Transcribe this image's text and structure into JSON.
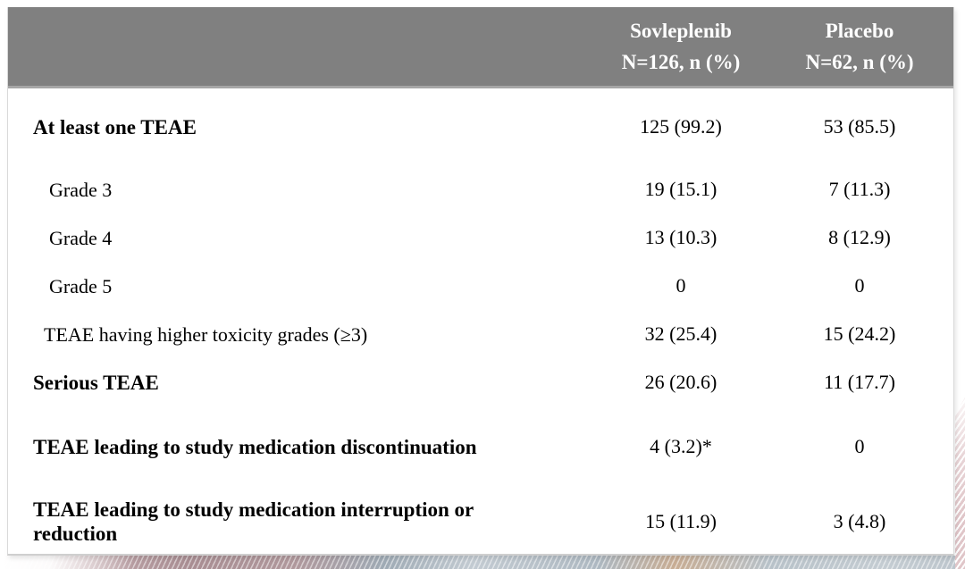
{
  "colors": {
    "header_bg": "#808080",
    "header_text": "#ffffff",
    "body_bg": "#ffffff",
    "body_text": "#000000",
    "decor_mauve": "#a98e93",
    "decor_gray_blue": "#adb8c1",
    "decor_tan": "#c8ad94",
    "decor_pink_stripe": "#e0c6c9"
  },
  "table": {
    "header": {
      "columns": [
        {
          "name": "Sovleplenib",
          "subtitle": "N=126, n (%)"
        },
        {
          "name": "Placebo",
          "subtitle": "N=62, n (%)"
        }
      ]
    },
    "rows": [
      {
        "label": "At least one TEAE",
        "sovleplenib": "125 (99.2)",
        "placebo": "53 (85.5)"
      },
      {
        "label": "Grade 3",
        "sovleplenib": "19 (15.1)",
        "placebo": "7 (11.3)"
      },
      {
        "label": "Grade 4",
        "sovleplenib": "13 (10.3)",
        "placebo": "8 (12.9)"
      },
      {
        "label": "Grade 5",
        "sovleplenib": "0",
        "placebo": "0"
      },
      {
        "label": "TEAE having higher toxicity grades (≥3)",
        "sovleplenib": "32 (25.4)",
        "placebo": "15 (24.2)"
      },
      {
        "label": "Serious TEAE",
        "sovleplenib": "26 (20.6)",
        "placebo": "11 (17.7)"
      },
      {
        "label": "TEAE leading to study medication discontinuation",
        "sovleplenib": "4 (3.2)*",
        "placebo": "0"
      },
      {
        "label": "TEAE leading to study medication interruption or reduction",
        "sovleplenib": "15 (11.9)",
        "placebo": "3 (4.8)"
      }
    ]
  }
}
